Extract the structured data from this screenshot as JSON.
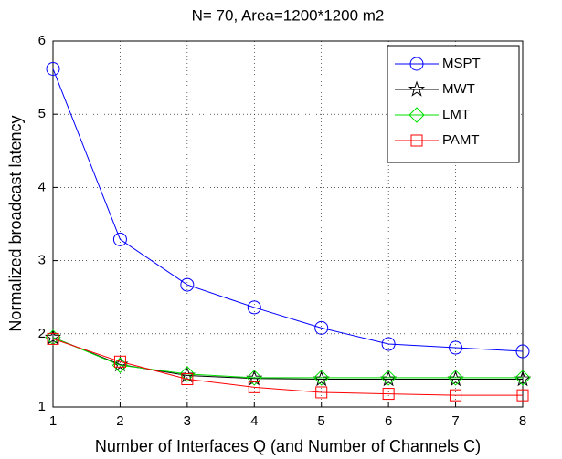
{
  "chart_data": {
    "type": "line",
    "title": "N= 70, Area=1200*1200 m2",
    "x_label": "Number of Interfaces Q (and Number of Channels C)",
    "y_label": "Normalized broadcast latency",
    "x": [
      1,
      2,
      3,
      4,
      5,
      6,
      7,
      8
    ],
    "xlim": [
      1,
      8
    ],
    "xticks": [
      1,
      2,
      3,
      4,
      5,
      6,
      7,
      8
    ],
    "ylim": [
      1,
      6
    ],
    "yticks": [
      1,
      2,
      3,
      4,
      5,
      6
    ],
    "grid": true,
    "legend": "top-right",
    "series": [
      {
        "name": "MSPT",
        "color": "#0000ff",
        "marker": "circle",
        "values": [
          5.62,
          3.29,
          2.67,
          2.36,
          2.08,
          1.86,
          1.81,
          1.76
        ]
      },
      {
        "name": "MWT",
        "color": "#000000",
        "marker": "star",
        "values": [
          1.95,
          1.58,
          1.43,
          1.39,
          1.38,
          1.38,
          1.38,
          1.38
        ]
      },
      {
        "name": "LMT",
        "color": "#00e000",
        "marker": "diamond",
        "values": [
          1.95,
          1.57,
          1.45,
          1.4,
          1.4,
          1.4,
          1.4,
          1.4
        ]
      },
      {
        "name": "PAMT",
        "color": "#ff0000",
        "marker": "square",
        "values": [
          1.93,
          1.62,
          1.38,
          1.27,
          1.2,
          1.18,
          1.16,
          1.16
        ]
      }
    ]
  }
}
